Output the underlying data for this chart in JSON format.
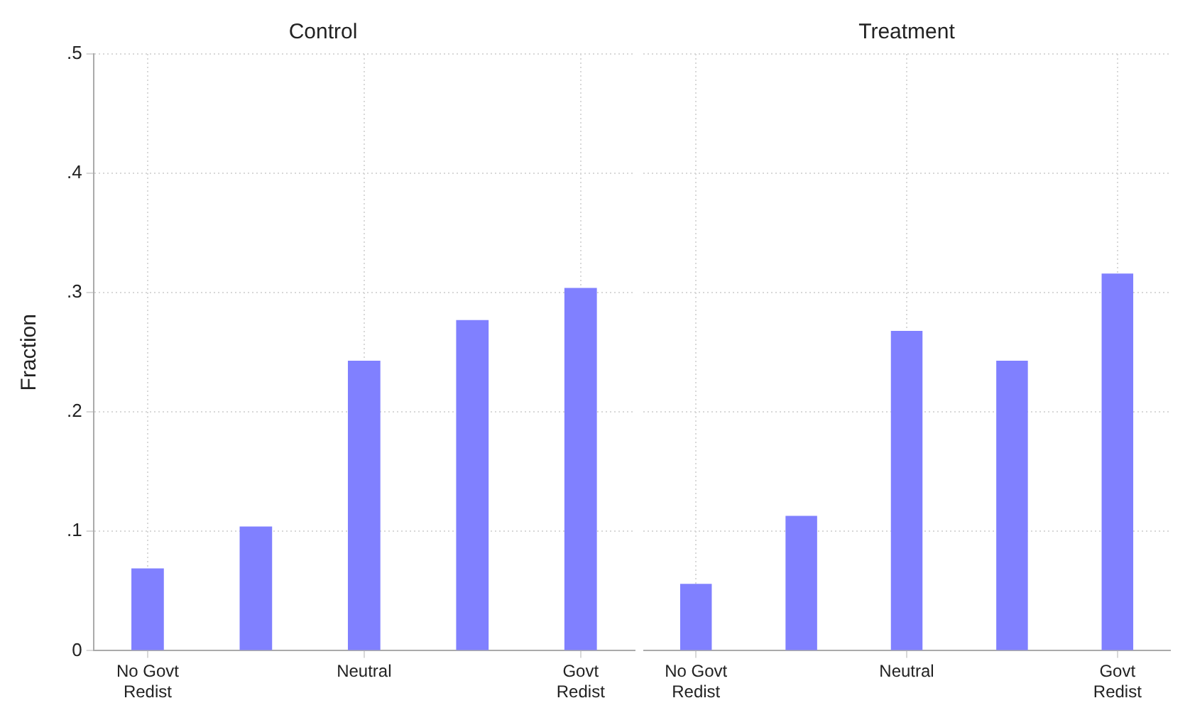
{
  "chart_data": [
    {
      "type": "bar",
      "title": "Control",
      "ylabel": "Fraction",
      "categories": [
        "No Govt Redist",
        null,
        "Neutral",
        null,
        "Govt Redist"
      ],
      "values": [
        0.069,
        0.104,
        0.243,
        0.277,
        0.304
      ],
      "color": "#8080ff",
      "ylim": [
        0,
        0.5
      ],
      "yticks": [
        0,
        {
          "value": 0.1,
          "label": ".1"
        },
        {
          "value": 0.2,
          "label": ".2"
        },
        {
          "value": 0.3,
          "label": ".3"
        },
        {
          "value": 0.4,
          "label": ".4"
        },
        {
          "value": 0.5,
          "label": ".5"
        }
      ],
      "grid": true
    },
    {
      "type": "bar",
      "title": "Treatment",
      "categories": [
        "No Govt Redist",
        null,
        "Neutral",
        null,
        "Govt Redist"
      ],
      "values": [
        0.056,
        0.113,
        0.268,
        0.243,
        0.316
      ],
      "color": "#8080ff",
      "ylim": [
        0,
        0.5
      ],
      "yticks": [
        0,
        0.1,
        0.2,
        0.3,
        0.4,
        0.5
      ],
      "grid": true,
      "tick_labels": "x"
    }
  ]
}
